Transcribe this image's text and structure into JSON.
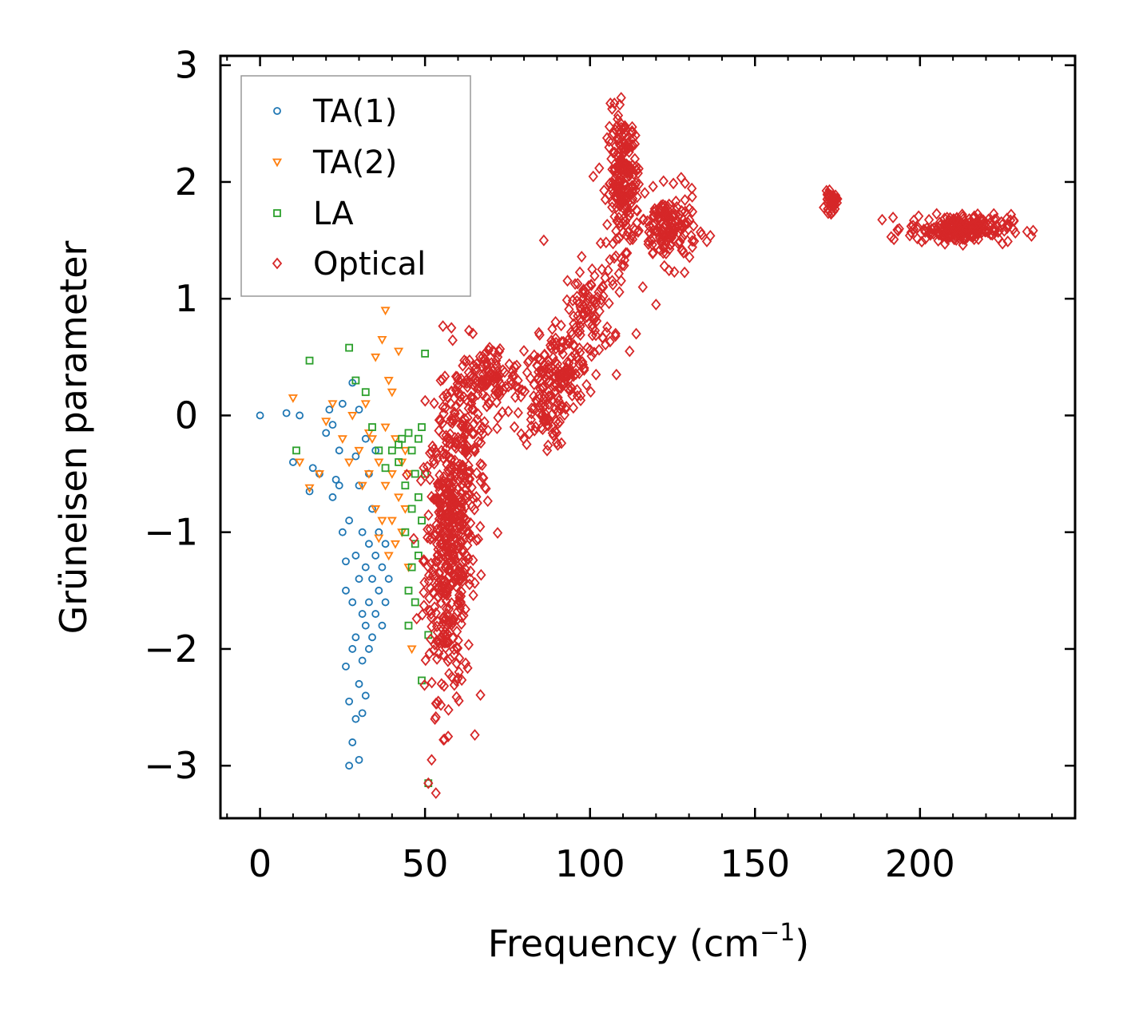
{
  "chart_data": {
    "type": "scatter",
    "title": "",
    "xlabel": "Frequency (cm",
    "xlabel_sup": "−1",
    "xlabel_end": ")",
    "ylabel": "Grüneisen parameter",
    "xlim": [
      -12,
      247
    ],
    "ylim": [
      -3.45,
      3.08
    ],
    "xticks": [
      0,
      50,
      100,
      150,
      200
    ],
    "yticks": [
      -3,
      -2,
      -1,
      0,
      1,
      2,
      3
    ],
    "xtick_labels": [
      "0",
      "50",
      "100",
      "150",
      "200"
    ],
    "ytick_labels": [
      "−3",
      "−2",
      "−1",
      "0",
      "1",
      "2",
      "3"
    ],
    "legend_position": "top-left",
    "series": [
      {
        "name": "TA(1)",
        "marker": "circle",
        "color": "#1f77b4",
        "points": [
          [
            0,
            0
          ],
          [
            8,
            0.02
          ],
          [
            10,
            -0.4
          ],
          [
            12,
            0.0
          ],
          [
            15,
            -0.65
          ],
          [
            16,
            -0.45
          ],
          [
            18,
            -0.5
          ],
          [
            20,
            -0.15
          ],
          [
            21,
            0.05
          ],
          [
            22,
            -0.7
          ],
          [
            23,
            -0.55
          ],
          [
            24,
            -0.3
          ],
          [
            25,
            -1.0
          ],
          [
            25,
            0.1
          ],
          [
            26,
            -1.5
          ],
          [
            26,
            -2.15
          ],
          [
            27,
            -0.9
          ],
          [
            27,
            -2.45
          ],
          [
            27,
            -3.0
          ],
          [
            28,
            -1.6
          ],
          [
            28,
            -2.0
          ],
          [
            28,
            -2.8
          ],
          [
            29,
            -1.2
          ],
          [
            29,
            -1.9
          ],
          [
            29,
            -2.6
          ],
          [
            30,
            -0.6
          ],
          [
            30,
            -1.4
          ],
          [
            30,
            -2.3
          ],
          [
            30,
            -2.95
          ],
          [
            31,
            -1.0
          ],
          [
            31,
            -1.7
          ],
          [
            31,
            -2.1
          ],
          [
            31,
            -2.55
          ],
          [
            32,
            -0.2
          ],
          [
            32,
            -1.3
          ],
          [
            32,
            -1.8
          ],
          [
            32,
            -2.4
          ],
          [
            33,
            -0.5
          ],
          [
            33,
            -1.1
          ],
          [
            33,
            -1.6
          ],
          [
            33,
            -2.0
          ],
          [
            34,
            -0.8
          ],
          [
            34,
            -1.4
          ],
          [
            34,
            -1.9
          ],
          [
            35,
            -0.3
          ],
          [
            35,
            -1.2
          ],
          [
            35,
            -1.7
          ],
          [
            36,
            -1.0
          ],
          [
            36,
            -1.5
          ],
          [
            37,
            -1.3
          ],
          [
            37,
            -1.8
          ],
          [
            38,
            -1.1
          ],
          [
            38,
            -1.6
          ],
          [
            39,
            -1.4
          ],
          [
            28,
            0.28
          ],
          [
            30,
            0.05
          ],
          [
            22,
            -0.08
          ],
          [
            26,
            -1.25
          ],
          [
            24,
            -0.6
          ],
          [
            29,
            -0.35
          ]
        ]
      },
      {
        "name": "TA(2)",
        "marker": "triangle-down",
        "color": "#ff7f0e",
        "points": [
          [
            10,
            0.15
          ],
          [
            12,
            -0.4
          ],
          [
            15,
            -0.62
          ],
          [
            18,
            -0.5
          ],
          [
            20,
            -0.05
          ],
          [
            22,
            0.1
          ],
          [
            25,
            -0.2
          ],
          [
            27,
            -0.4
          ],
          [
            28,
            0.0
          ],
          [
            30,
            -0.3
          ],
          [
            31,
            -0.6
          ],
          [
            32,
            0.1
          ],
          [
            33,
            -0.5
          ],
          [
            34,
            -0.2
          ],
          [
            35,
            -0.8
          ],
          [
            35,
            0.5
          ],
          [
            36,
            -0.4
          ],
          [
            37,
            -0.9
          ],
          [
            37,
            0.65
          ],
          [
            38,
            -0.1
          ],
          [
            38,
            -0.6
          ],
          [
            39,
            -1.2
          ],
          [
            39,
            0.3
          ],
          [
            40,
            -0.5
          ],
          [
            40,
            -0.9
          ],
          [
            41,
            -0.2
          ],
          [
            41,
            -1.1
          ],
          [
            42,
            0.55
          ],
          [
            42,
            -0.7
          ],
          [
            43,
            -0.4
          ],
          [
            43,
            -1.0
          ],
          [
            44,
            -0.3
          ],
          [
            44,
            -0.8
          ],
          [
            45,
            -1.3
          ],
          [
            45,
            -0.5
          ],
          [
            46,
            -2.0
          ],
          [
            36,
            -1.05
          ],
          [
            38,
            0.9
          ],
          [
            40,
            0.2
          ],
          [
            33,
            -0.15
          ]
        ]
      },
      {
        "name": "LA",
        "marker": "square",
        "color": "#2ca02c",
        "points": [
          [
            15,
            0.47
          ],
          [
            11,
            -0.3
          ],
          [
            27,
            0.58
          ],
          [
            29,
            0.3
          ],
          [
            32,
            0.2
          ],
          [
            34,
            -0.1
          ],
          [
            36,
            -0.3
          ],
          [
            38,
            -0.45
          ],
          [
            40,
            -0.3
          ],
          [
            42,
            -0.4
          ],
          [
            43,
            -0.2
          ],
          [
            44,
            -0.6
          ],
          [
            44,
            -1.0
          ],
          [
            45,
            -1.5
          ],
          [
            45,
            -1.8
          ],
          [
            46,
            -0.3
          ],
          [
            46,
            -0.8
          ],
          [
            46,
            -1.3
          ],
          [
            47,
            -0.5
          ],
          [
            47,
            -1.1
          ],
          [
            47,
            -1.6
          ],
          [
            48,
            -0.2
          ],
          [
            48,
            -0.7
          ],
          [
            48,
            -1.2
          ],
          [
            49,
            -0.1
          ],
          [
            49,
            -0.9
          ],
          [
            49,
            -2.27
          ],
          [
            50,
            0.53
          ],
          [
            50,
            -0.5
          ],
          [
            51,
            -1.88
          ],
          [
            51,
            -3.15
          ],
          [
            42,
            -0.25
          ],
          [
            45,
            -0.15
          ]
        ]
      },
      {
        "name": "Optical",
        "marker": "diamond",
        "color": "#d62728",
        "regions": [
          {
            "cx": 57,
            "cy": -1.2,
            "sx": 6,
            "sy": 1.0,
            "n": 420
          },
          {
            "cx": 62,
            "cy": -0.3,
            "sx": 7,
            "sy": 0.7,
            "n": 160
          },
          {
            "cx": 70,
            "cy": 0.3,
            "sx": 8,
            "sy": 0.25,
            "n": 110
          },
          {
            "cx": 86,
            "cy": 0.15,
            "sx": 6,
            "sy": 0.35,
            "n": 110
          },
          {
            "cx": 92,
            "cy": 0.4,
            "sx": 6,
            "sy": 0.35,
            "n": 90
          },
          {
            "cx": 100,
            "cy": 0.9,
            "sx": 6,
            "sy": 0.35,
            "n": 90
          },
          {
            "cx": 110,
            "cy": 2.0,
            "sx": 4,
            "sy": 0.5,
            "n": 220
          },
          {
            "cx": 124,
            "cy": 1.6,
            "sx": 7,
            "sy": 0.25,
            "n": 160
          },
          {
            "cx": 173,
            "cy": 1.82,
            "sx": 1.5,
            "sy": 0.07,
            "n": 40
          },
          {
            "cx": 212,
            "cy": 1.6,
            "sx": 13,
            "sy": 0.1,
            "n": 220
          }
        ],
        "outliers": [
          [
            51,
            -3.15
          ],
          [
            52,
            -2.95
          ],
          [
            53,
            -2.6
          ],
          [
            54,
            -2.45
          ],
          [
            55,
            -2.3
          ],
          [
            58,
            0.75
          ],
          [
            63,
            -0.1
          ],
          [
            86,
            1.5
          ],
          [
            87,
            -0.3
          ],
          [
            104,
            1.1
          ],
          [
            112,
            0.55
          ],
          [
            114,
            0.7
          ],
          [
            116,
            1.1
          ],
          [
            120,
            0.95
          ],
          [
            108,
            0.35
          ],
          [
            60,
            -2.25
          ],
          [
            57,
            -2.75
          ]
        ]
      }
    ]
  }
}
